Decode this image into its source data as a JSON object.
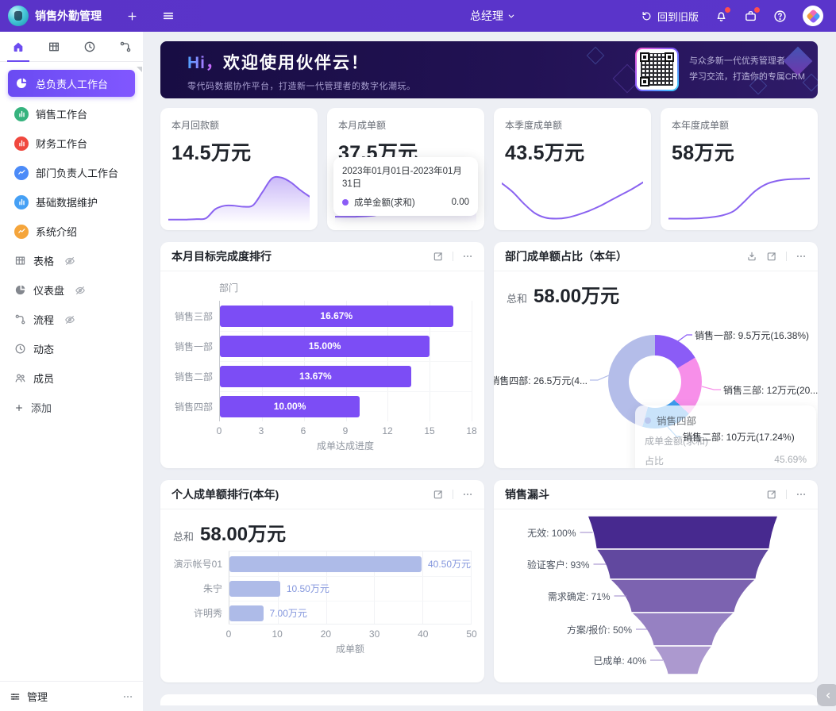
{
  "topbar": {
    "app_title": "销售外勤管理",
    "role": "总经理",
    "back_label": "回到旧版"
  },
  "sidebar": {
    "tabs": [
      {
        "icon": "home",
        "active": true
      },
      {
        "icon": "table",
        "active": false
      },
      {
        "icon": "clock",
        "active": false
      },
      {
        "icon": "flow",
        "active": false
      }
    ],
    "workspaces": [
      {
        "label": "总负责人工作台",
        "icon": "pie",
        "icon_bg": "#6c4cf0",
        "active": true
      },
      {
        "label": "销售工作台",
        "icon": "bars",
        "icon_bg": "#36b37e",
        "active": false
      },
      {
        "label": "财务工作台",
        "icon": "bars",
        "icon_bg": "#f0483e",
        "active": false
      },
      {
        "label": "部门负责人工作台",
        "icon": "zigzag",
        "icon_bg": "#4c8bf8",
        "active": false
      },
      {
        "label": "基础数据维护",
        "icon": "bars",
        "icon_bg": "#45a0f5",
        "active": false
      },
      {
        "label": "系统介绍",
        "icon": "zigzag",
        "icon_bg": "#f5a53b",
        "active": false
      }
    ],
    "views": [
      {
        "label": "表格",
        "icon": "table",
        "hidden": true
      },
      {
        "label": "仪表盘",
        "icon": "pie",
        "hidden": true
      },
      {
        "label": "流程",
        "icon": "flow",
        "hidden": true
      },
      {
        "label": "动态",
        "icon": "clock",
        "hidden": false
      },
      {
        "label": "成员",
        "icon": "members",
        "hidden": false
      }
    ],
    "add_label": "添加",
    "manage_label": "管理"
  },
  "banner": {
    "title_hi": "Hi，",
    "title_main": "欢迎使用伙伴云！",
    "subtitle": "零代码数据协作平台，打造新一代管理者的数字化潮玩。",
    "qr_line1": "与众多新一代优秀管理者",
    "qr_line2": "学习交流，打造你的专属CRM"
  },
  "stat_cards": [
    {
      "label": "本月回款额",
      "value": "14.5万元",
      "fill": true,
      "trend": [
        4,
        4,
        4,
        5,
        7,
        26,
        33,
        33,
        31,
        34,
        62,
        90,
        92,
        82,
        66,
        52
      ]
    },
    {
      "label": "本月成单额",
      "value": "37.5万元",
      "fill": true,
      "trend": [
        10,
        10,
        10,
        11,
        13,
        20,
        28,
        31,
        30,
        27,
        25,
        24,
        28,
        48,
        95
      ],
      "tooltip": {
        "date_range": "2023年01月01日-2023年01月31日",
        "row_label": "成单金额(求和)",
        "row_value": "0.00"
      }
    },
    {
      "label": "本季度成单额",
      "value": "43.5万元",
      "fill": false,
      "trend": [
        80,
        62,
        38,
        18,
        8,
        6,
        8,
        14,
        22,
        32,
        44,
        56,
        68,
        82
      ]
    },
    {
      "label": "本年度成单额",
      "value": "58万元",
      "fill": false,
      "trend": [
        6,
        6,
        6,
        7,
        9,
        13,
        22,
        42,
        64,
        78,
        85,
        88,
        89,
        90
      ]
    }
  ],
  "spark_color": "#8a63f0",
  "charts": {
    "target_rank": {
      "type": "bar",
      "title": "本月目标完成度排行",
      "y_axis_title": "部门",
      "x_axis_label": "成单达成进度",
      "x_ticks": [
        0,
        3,
        6,
        9,
        12,
        15,
        18
      ],
      "x_max": 18,
      "bar_color": "#7c4df5",
      "rows": [
        {
          "label": "销售三部",
          "value": 16.67,
          "display": "16.67%"
        },
        {
          "label": "销售一部",
          "value": 15.0,
          "display": "15.00%"
        },
        {
          "label": "销售二部",
          "value": 13.67,
          "display": "13.67%"
        },
        {
          "label": "销售四部",
          "value": 10.0,
          "display": "10.00%"
        }
      ]
    },
    "dept_share": {
      "type": "pie",
      "title": "部门成单额占比（本年）",
      "sum_label": "总和",
      "sum_value": "58.00万元",
      "series": [
        {
          "name": "销售一部",
          "display": "销售一部: 9.5万元(16.38%)",
          "pct": 16.38,
          "color": "#8b5cf6"
        },
        {
          "name": "销售三部",
          "display": "销售三部: 12万元(20....",
          "pct": 20.69,
          "color": "#f78fe9"
        },
        {
          "name": "销售二部",
          "display": "销售二部: 10万元(17.24%)",
          "pct": 17.24,
          "color": "#3d9bee"
        },
        {
          "name": "销售四部",
          "display": "销售四部: 26.5万元(4...",
          "pct": 45.69,
          "color": "#b4bde9"
        }
      ],
      "tooltip": {
        "header": "销售四部",
        "rows": [
          {
            "label": "成单金额(求和)",
            "value": ""
          },
          {
            "label": "占比",
            "value": "45.69%"
          }
        ]
      }
    },
    "personal_rank": {
      "type": "bar",
      "title": "个人成单额排行(本年)",
      "sum_label": "总和",
      "sum_value": "58.00万元",
      "x_axis_label": "成单额",
      "x_ticks": [
        0,
        10,
        20,
        30,
        40,
        50
      ],
      "x_max": 50,
      "bar_color": "#aebbe8",
      "value_color": "#8396dd",
      "rows": [
        {
          "label": "演示帐号01",
          "value": 40.5,
          "display": "40.50万元"
        },
        {
          "label": "朱宁",
          "value": 10.5,
          "display": "10.50万元"
        },
        {
          "label": "许明秀",
          "value": 7.0,
          "display": "7.00万元"
        }
      ]
    },
    "funnel": {
      "type": "funnel",
      "title": "销售漏斗",
      "stages": [
        {
          "name": "无效",
          "pct": 100,
          "display": "无效: 100%",
          "color": "#47298f"
        },
        {
          "name": "验证客户",
          "pct": 93,
          "display": "验证客户: 93%",
          "color": "#61489f"
        },
        {
          "name": "需求确定",
          "pct": 71,
          "display": "需求确定: 71%",
          "color": "#7c63b0"
        },
        {
          "name": "方案/报价",
          "pct": 50,
          "display": "方案/报价: 50%",
          "color": "#9681c2"
        },
        {
          "name": "已成单",
          "pct": 40,
          "display": "已成单: 40%",
          "color": "#ac99cf"
        }
      ]
    }
  }
}
